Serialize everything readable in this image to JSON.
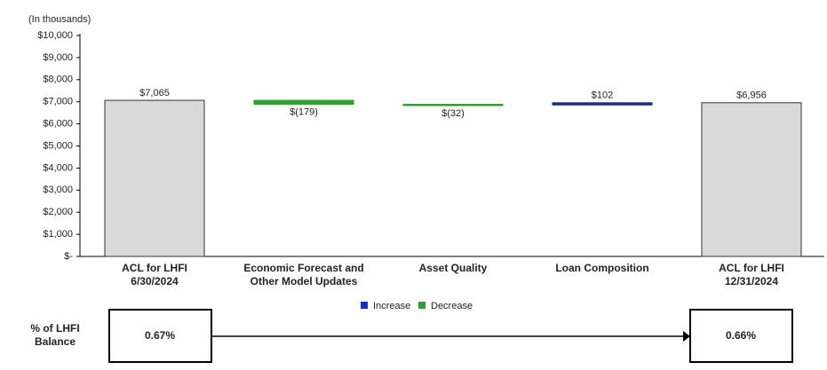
{
  "chart_data": {
    "type": "waterfall",
    "unit_label": "(In thousands)",
    "categories": [
      "ACL for LHFI\n6/30/2024",
      "Economic Forecast and\nOther Model Updates",
      "Asset Quality",
      "Loan Composition",
      "ACL for LHFI\n12/31/2024"
    ],
    "values": [
      7065,
      -179,
      -32,
      102,
      6956
    ],
    "value_labels": [
      "$7,065",
      "$(179)",
      "$(32)",
      "$102",
      "$6,956"
    ],
    "totals": [
      true,
      false,
      false,
      false,
      true
    ],
    "total_color": "#d9d9d9",
    "increase": {
      "name": "Increase",
      "color": "#1f2a80"
    },
    "decrease": {
      "name": "Decrease",
      "color": "#2e9e2e"
    },
    "ylim": [
      0,
      10000
    ],
    "yticks": [
      {
        "value": 0,
        "label": "$-"
      },
      {
        "value": 1000,
        "label": "$1,000"
      },
      {
        "value": 2000,
        "label": "$2,000"
      },
      {
        "value": 3000,
        "label": "$3,000"
      },
      {
        "value": 4000,
        "label": "$4,000"
      },
      {
        "value": 5000,
        "label": "$5,000"
      },
      {
        "value": 6000,
        "label": "$6,000"
      },
      {
        "value": 7000,
        "label": "$7,000"
      },
      {
        "value": 8000,
        "label": "$8,000"
      },
      {
        "value": 9000,
        "label": "$9,000"
      },
      {
        "value": 10000,
        "label": "$10,000"
      }
    ]
  },
  "balance_ratio": {
    "label": "% of LHFI\nBalance",
    "start": "0.67%",
    "end": "0.66%"
  }
}
